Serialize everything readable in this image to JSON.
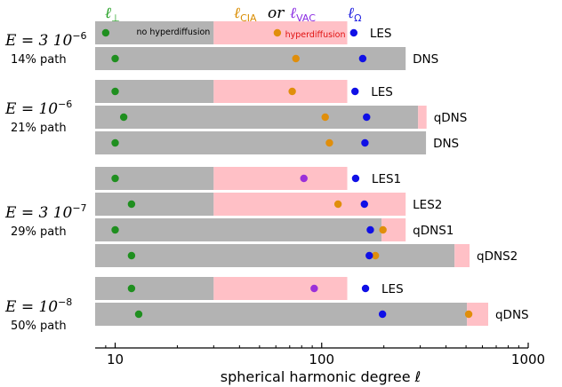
{
  "chart_data": {
    "type": "range-bar",
    "x_scale": "log",
    "xlim": [
      8,
      1000
    ],
    "xlabel": "spherical harmonic degree ℓ",
    "xticks": [
      10,
      100,
      1000
    ],
    "xtick_labels": [
      "10",
      "100",
      "1000"
    ],
    "legend": {
      "items": [
        {
          "symbol": "ℓ",
          "sub": "⊥",
          "color": "#22a022"
        },
        {
          "symbol": "ℓ",
          "sub": "CIA",
          "color": "#d98c00"
        },
        {
          "symbol": "or",
          "sub": "",
          "color": "#000000"
        },
        {
          "symbol": "ℓ",
          "sub": "VAC",
          "color": "#8a2be2"
        },
        {
          "symbol": "ℓ",
          "sub": "Ω",
          "color": "#1a1adf"
        }
      ]
    },
    "annotations": {
      "no_hyper": "no hyperdiffusion",
      "hyper": "hyperdiffusion"
    },
    "colors": {
      "resolved": "#b3b3b3",
      "hyperdiffusion": "#ffc0c6",
      "l_perp": "#1f8f1f",
      "l_cia": "#e08e0b",
      "l_vac": "#9b30d9",
      "l_omega": "#1010e6"
    },
    "groups": [
      {
        "E": "E = 3 10",
        "E_exp": "−6",
        "path": "14% path",
        "rows": [
          {
            "label": "LES",
            "gray_end": 30,
            "pink_end": 133,
            "l_perp": 9,
            "l_cia": 61,
            "cia_kind": "cia",
            "l_omega": 143,
            "note": true
          },
          {
            "label": "DNS",
            "gray_end": 255,
            "pink_end": null,
            "l_perp": 10,
            "l_cia": 75,
            "cia_kind": "cia",
            "l_omega": 158
          }
        ]
      },
      {
        "E": "E = 10",
        "E_exp": "−6",
        "path": "21% path",
        "rows": [
          {
            "label": "LES",
            "gray_end": 30,
            "pink_end": 133,
            "l_perp": 10,
            "l_cia": 72,
            "cia_kind": "cia",
            "l_omega": 145
          },
          {
            "label": "qDNS",
            "gray_end": 293,
            "pink_end": 322,
            "l_perp": 11,
            "l_cia": 104,
            "cia_kind": "cia",
            "l_omega": 165
          },
          {
            "label": "DNS",
            "gray_end": 320,
            "pink_end": null,
            "l_perp": 10,
            "l_cia": 109,
            "cia_kind": "cia",
            "l_omega": 162
          }
        ]
      },
      {
        "E": "E = 3 10",
        "E_exp": "−7",
        "path": "29% path",
        "rows": [
          {
            "label": "LES1",
            "gray_end": 30,
            "pink_end": 133,
            "l_perp": 10,
            "l_cia": 82,
            "cia_kind": "vac",
            "l_omega": 146
          },
          {
            "label": "LES2",
            "gray_end": 30,
            "pink_end": 255,
            "l_perp": 12,
            "l_cia": 120,
            "cia_kind": "cia",
            "l_omega": 161
          },
          {
            "label": "qDNS1",
            "gray_end": 195,
            "pink_end": 255,
            "l_perp": 10,
            "l_cia": 198,
            "cia_kind": "cia",
            "l_omega": 172
          },
          {
            "label": "qDNS2",
            "gray_end": 440,
            "pink_end": 520,
            "l_perp": 12,
            "l_cia": 182,
            "cia_kind": "cia",
            "l_omega": 170
          }
        ]
      },
      {
        "E": "E = 10",
        "E_exp": "−8",
        "path": "50% path",
        "rows": [
          {
            "label": "LES",
            "gray_end": 30,
            "pink_end": 133,
            "l_perp": 12,
            "l_cia": 92,
            "cia_kind": "vac",
            "l_omega": 163
          },
          {
            "label": "qDNS",
            "gray_end": 505,
            "pink_end": 640,
            "l_perp": 13,
            "l_cia": 515,
            "cia_kind": "cia",
            "l_omega": 197
          }
        ]
      }
    ]
  }
}
